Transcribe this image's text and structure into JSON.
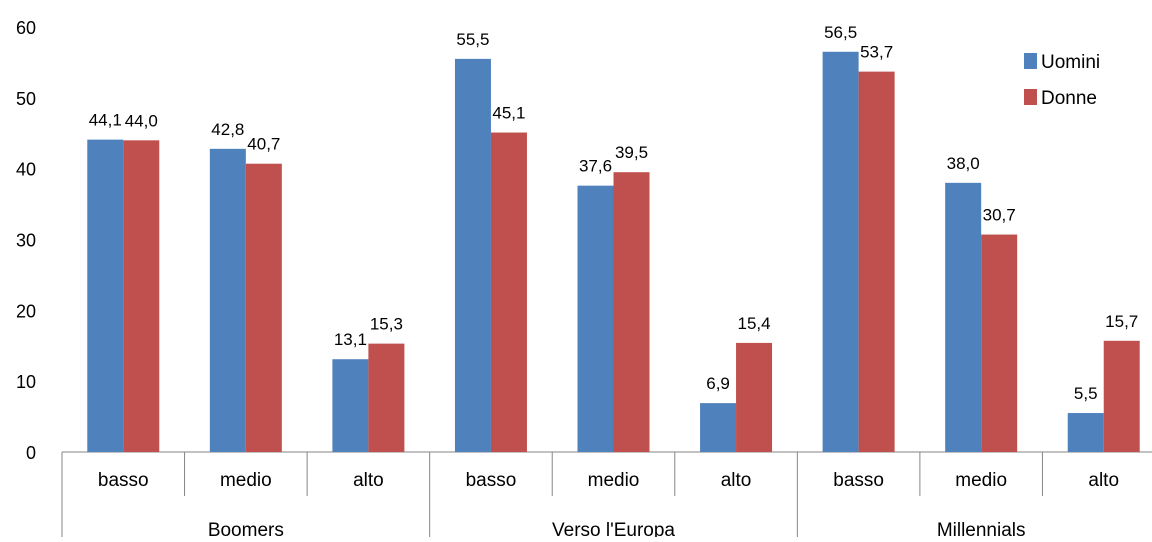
{
  "chart_data": {
    "type": "bar",
    "title": "",
    "xlabel": "",
    "ylabel": "",
    "ylim": [
      0,
      60
    ],
    "yticks": [
      0,
      10,
      20,
      30,
      40,
      50,
      60
    ],
    "grid": false,
    "legend_position": "top-right",
    "groups": [
      {
        "label": "Boomers",
        "categories": [
          "basso",
          "medio",
          "alto"
        ]
      },
      {
        "label": "Verso l'Europa",
        "categories": [
          "basso",
          "medio",
          "alto"
        ]
      },
      {
        "label": "Millennials",
        "categories": [
          "basso",
          "medio",
          "alto"
        ]
      }
    ],
    "categories": [
      "basso",
      "medio",
      "alto",
      "basso",
      "medio",
      "alto",
      "basso",
      "medio",
      "alto"
    ],
    "series": [
      {
        "name": "Uomini",
        "color": "#4F81BD",
        "values": [
          44.1,
          42.8,
          13.1,
          55.5,
          37.6,
          6.9,
          56.5,
          38.0,
          5.5
        ],
        "labels": [
          "44,1",
          "42,8",
          "13,1",
          "55,5",
          "37,6",
          "6,9",
          "56,5",
          "38,0",
          "5,5"
        ]
      },
      {
        "name": "Donne",
        "color": "#C0504D",
        "values": [
          44.0,
          40.7,
          15.3,
          45.1,
          39.5,
          15.4,
          53.7,
          30.7,
          15.7
        ],
        "labels": [
          "44,0",
          "40,7",
          "15,3",
          "45,1",
          "39,5",
          "15,4",
          "53,7",
          "30,7",
          "15,7"
        ]
      }
    ]
  }
}
